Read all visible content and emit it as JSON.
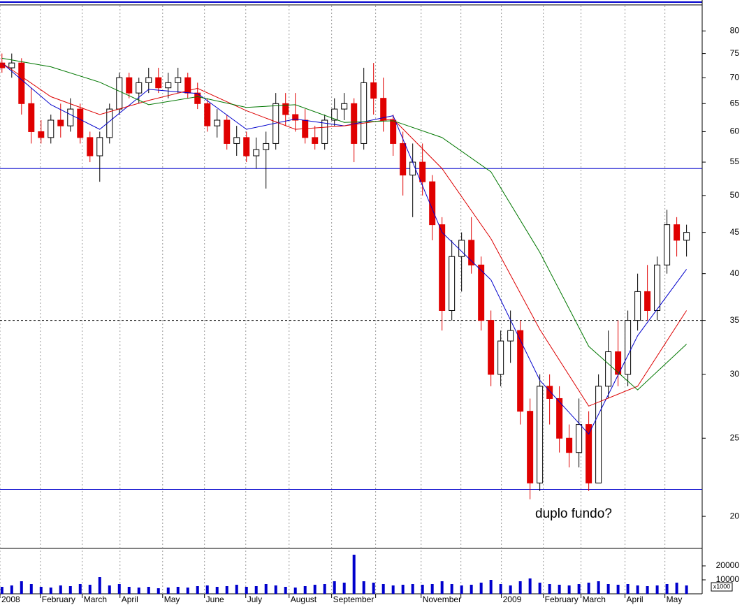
{
  "chart_data": [
    {
      "type": "candlestick",
      "log_scale": true,
      "xlim": [
        -0.2,
        71.6
      ],
      "ylim": [
        18.25,
        86
      ],
      "yticks": [
        20,
        25,
        30,
        35,
        40,
        45,
        50,
        55,
        60,
        65,
        70,
        75,
        80
      ],
      "xticks": [
        {
          "value": -0.2,
          "label": "2008"
        },
        {
          "value": 3.93,
          "label": "February"
        },
        {
          "value": 8.21,
          "label": "March"
        },
        {
          "value": 12.07,
          "label": "April"
        },
        {
          "value": 16.43,
          "label": "May"
        },
        {
          "value": 20.71,
          "label": "June"
        },
        {
          "value": 24.93,
          "label": "July"
        },
        {
          "value": 29.36,
          "label": "August"
        },
        {
          "value": 33.71,
          "label": "September"
        },
        {
          "value": 38.21,
          "label": null
        },
        {
          "value": 42.86,
          "label": "November"
        },
        {
          "value": 46.93,
          "label": null
        },
        {
          "value": 51.07,
          "label": "2009"
        },
        {
          "value": 55.36,
          "label": "February"
        },
        {
          "value": 59.21,
          "label": "March"
        },
        {
          "value": 63.71,
          "label": "April"
        },
        {
          "value": 67.79,
          "label": "May"
        }
      ],
      "up_color": "#000000",
      "down_color": "#e00000",
      "x": [
        0,
        1,
        2,
        3,
        4,
        5,
        6,
        7,
        8,
        9,
        10,
        11,
        12,
        13,
        14,
        15,
        16,
        17,
        18,
        19,
        20,
        21,
        22,
        23,
        24,
        25,
        26,
        27,
        28,
        29,
        30,
        31,
        32,
        33,
        34,
        35,
        36,
        37,
        38,
        39,
        40,
        41,
        42,
        43,
        44,
        45,
        46,
        47,
        48,
        49,
        50,
        51,
        52,
        53,
        54,
        55,
        56,
        57,
        58,
        59,
        60,
        61,
        62,
        63,
        64,
        65,
        66,
        67,
        68,
        69,
        70
      ],
      "open": [
        73,
        72,
        73,
        65,
        60,
        59,
        62,
        61,
        64,
        59,
        56,
        59,
        64,
        70,
        67,
        69,
        70,
        68,
        69,
        70,
        67,
        65,
        61,
        62,
        58,
        59,
        56,
        57,
        58,
        65,
        63,
        62,
        59,
        58,
        62,
        64,
        65,
        58,
        69,
        66,
        62,
        58,
        53,
        55,
        52,
        46,
        36,
        42,
        44,
        41,
        35,
        30,
        33,
        34,
        27,
        22,
        29,
        28,
        25,
        24,
        26,
        22,
        29,
        32,
        30,
        35,
        38,
        36,
        41,
        46,
        44
      ],
      "high": [
        75,
        75,
        74,
        68,
        62,
        63,
        65,
        66,
        65,
        60,
        60,
        65,
        71,
        71,
        70,
        72,
        72,
        71,
        72,
        71,
        69,
        66,
        64,
        63,
        61,
        60,
        59,
        60,
        67,
        67,
        67,
        64,
        61,
        63,
        66,
        67,
        66,
        72,
        73,
        70,
        63,
        60,
        58,
        58,
        53,
        47,
        44,
        45,
        47,
        42,
        36,
        34,
        36,
        35,
        28,
        30,
        30,
        29,
        26,
        28,
        27,
        30,
        34,
        35,
        36,
        40,
        41,
        42,
        48,
        47,
        46
      ],
      "low": [
        71,
        70,
        63,
        58,
        58,
        58,
        59,
        60,
        58,
        55,
        52,
        58,
        63,
        66,
        65,
        67,
        67,
        66,
        67,
        66,
        64,
        60,
        59,
        57,
        56,
        55,
        54,
        51,
        57,
        61,
        60,
        58,
        57,
        57,
        61,
        62,
        55,
        57,
        63,
        60,
        56,
        50,
        47,
        50,
        44,
        34,
        35,
        38,
        40,
        34,
        29,
        29,
        31,
        26,
        21,
        21.5,
        26,
        24,
        23,
        23,
        21.5,
        22,
        28,
        29,
        29,
        34,
        35,
        35,
        40,
        42,
        42
      ],
      "close": [
        72,
        73,
        65,
        60,
        59,
        62,
        61,
        64,
        59,
        56,
        59,
        64,
        70,
        67,
        69,
        70,
        68,
        69,
        70,
        67,
        65,
        61,
        62,
        58,
        59,
        56,
        57,
        58,
        65,
        63,
        62,
        59,
        58,
        62,
        64,
        65,
        58,
        69,
        66,
        62,
        58,
        53,
        55,
        52,
        46,
        36,
        42,
        44,
        41,
        35,
        30,
        33,
        34,
        27,
        22,
        29,
        28,
        25,
        24,
        26,
        22,
        29,
        32,
        30,
        35,
        38,
        36,
        41,
        46,
        44,
        45
      ],
      "series": [
        {
          "color": "#0000cc",
          "x": [
            0,
            5,
            10,
            15,
            20,
            25,
            30,
            35,
            40,
            45,
            50,
            55,
            60,
            65,
            70
          ],
          "values": [
            73,
            64.8,
            60.4,
            67.7,
            66.9,
            60.4,
            62.2,
            61,
            62.8,
            45,
            39.3,
            29.5,
            25.3,
            33.5,
            40.5
          ]
        },
        {
          "color": "#dd0000",
          "x": [
            0,
            5,
            10,
            15,
            20,
            25,
            30,
            35,
            40,
            45,
            50,
            55,
            60,
            65,
            70
          ],
          "values": [
            73,
            66.3,
            63,
            65.6,
            67.9,
            63.7,
            60.4,
            61,
            62.2,
            54,
            44.2,
            34.1,
            27.4,
            29,
            36
          ]
        },
        {
          "color": "#007700",
          "x": [
            0,
            5,
            10,
            15,
            20,
            25,
            30,
            35,
            40,
            45,
            50,
            55,
            60,
            65,
            70
          ],
          "values": [
            74,
            72.2,
            69.1,
            64.8,
            66.3,
            64.3,
            64.8,
            61.6,
            61.9,
            59,
            53.5,
            42.5,
            32.5,
            28.7,
            32.7
          ]
        }
      ],
      "hlines": [
        {
          "value": 54,
          "color": "#0000cc",
          "dashed": false
        },
        {
          "value": 35,
          "color": "#000000",
          "dashed": true
        },
        {
          "value": 21.6,
          "color": "#0000cc",
          "dashed": false
        }
      ],
      "annotation": "duplo fundo?"
    },
    {
      "type": "bar",
      "ylim": [
        0,
        31500
      ],
      "yticks": [
        10000,
        20000
      ],
      "unit_label": "x1000",
      "color": "#0000cc",
      "values": [
        5000,
        6000,
        9000,
        7000,
        5000,
        4500,
        6000,
        5500,
        7000,
        6500,
        12000,
        6000,
        7000,
        5000,
        4500,
        5000,
        4000,
        4500,
        5000,
        4500,
        5500,
        6000,
        5000,
        5500,
        6500,
        5000,
        5500,
        7000,
        6000,
        5000,
        4500,
        5500,
        6500,
        7000,
        9000,
        8000,
        28000,
        9000,
        8000,
        7000,
        6000,
        6500,
        7000,
        6500,
        7000,
        9000,
        7000,
        6000,
        6500,
        8000,
        10000,
        7000,
        6000,
        9000,
        11000,
        8000,
        7000,
        6500,
        6000,
        7000,
        8000,
        9000,
        7000,
        6500,
        7000,
        6000,
        5500,
        6000,
        7000,
        8000,
        6000
      ]
    }
  ]
}
